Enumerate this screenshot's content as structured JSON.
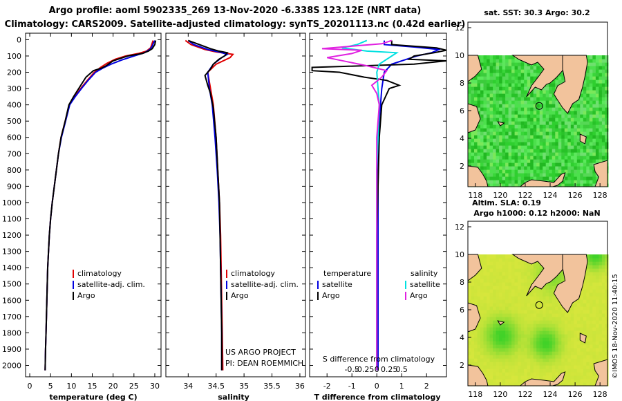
{
  "header": {
    "line1": "Argo profile: aoml 5902335_269 13-Nov-2020 -6.338S 123.12E (NRT data)",
    "line2": "Climatology: CARS2009. Satellite-adjusted climatology: synTS_20201113.nc (0.42d earlier)"
  },
  "colors": {
    "climatology": "#e00000",
    "satellite": "#0000e0",
    "argo": "#000000",
    "sat_salinity": "#00e0e0",
    "argo_salinity": "#e020e0",
    "land": "#f2c39c",
    "ocean_sst": "#2fcf2f",
    "ocean_sla": "#c8e83a"
  },
  "depth_axis": {
    "ticks": [
      0,
      100,
      200,
      300,
      400,
      500,
      600,
      700,
      800,
      900,
      1000,
      1100,
      1200,
      1300,
      1400,
      1500,
      1600,
      1700,
      1800,
      1900,
      2000
    ],
    "range": [
      -40,
      2070
    ]
  },
  "chart_data": [
    {
      "type": "line",
      "name": "temperature",
      "xlabel": "temperature (deg C)",
      "xlim": [
        -1,
        31.5
      ],
      "xticks": [
        0,
        5,
        10,
        15,
        20,
        25,
        30
      ],
      "ylim": [
        -40,
        2070
      ],
      "legend": [
        "climatology",
        "satellite-adj. clim.",
        "Argo"
      ],
      "series": [
        {
          "name": "climatology",
          "points": [
            [
              29.6,
              5
            ],
            [
              29.4,
              20
            ],
            [
              29.0,
              50
            ],
            [
              28.0,
              70
            ],
            [
              26.0,
              85
            ],
            [
              23.0,
              100
            ],
            [
              20.5,
              120
            ],
            [
              18.5,
              145
            ],
            [
              17.0,
              170
            ],
            [
              15.5,
              200
            ],
            [
              13.8,
              250
            ],
            [
              12.2,
              300
            ],
            [
              10.8,
              350
            ],
            [
              9.5,
              400
            ],
            [
              8.5,
              500
            ],
            [
              7.5,
              600
            ],
            [
              6.9,
              700
            ],
            [
              6.4,
              800
            ],
            [
              5.9,
              900
            ],
            [
              5.4,
              1000
            ],
            [
              5.0,
              1100
            ],
            [
              4.7,
              1200
            ],
            [
              4.5,
              1300
            ],
            [
              4.3,
              1400
            ],
            [
              4.2,
              1500
            ],
            [
              4.1,
              1600
            ],
            [
              4.0,
              1700
            ],
            [
              3.9,
              1800
            ],
            [
              3.8,
              1900
            ],
            [
              3.7,
              2030
            ]
          ]
        },
        {
          "name": "satellite-adj. clim.",
          "points": [
            [
              30.0,
              5
            ],
            [
              29.7,
              20
            ],
            [
              29.4,
              40
            ],
            [
              28.8,
              60
            ],
            [
              27.5,
              80
            ],
            [
              25.0,
              100
            ],
            [
              22.0,
              125
            ],
            [
              19.5,
              150
            ],
            [
              17.5,
              175
            ],
            [
              15.8,
              200
            ],
            [
              14.0,
              250
            ],
            [
              12.4,
              300
            ],
            [
              10.9,
              350
            ],
            [
              9.6,
              400
            ],
            [
              8.6,
              500
            ],
            [
              7.6,
              600
            ],
            [
              6.9,
              700
            ],
            [
              6.4,
              800
            ],
            [
              5.9,
              900
            ],
            [
              5.4,
              1000
            ],
            [
              5.0,
              1100
            ],
            [
              4.7,
              1200
            ],
            [
              4.5,
              1300
            ],
            [
              4.3,
              1400
            ],
            [
              4.2,
              1500
            ],
            [
              4.1,
              1600
            ],
            [
              4.0,
              1700
            ],
            [
              3.9,
              1800
            ],
            [
              3.8,
              1900
            ],
            [
              3.7,
              2030
            ]
          ]
        },
        {
          "name": "Argo",
          "points": [
            [
              30.2,
              5
            ],
            [
              30.0,
              30
            ],
            [
              29.4,
              55
            ],
            [
              28.5,
              70
            ],
            [
              27.0,
              85
            ],
            [
              23.5,
              100
            ],
            [
              20.0,
              130
            ],
            [
              18.3,
              160
            ],
            [
              17.2,
              175
            ],
            [
              15.3,
              190
            ],
            [
              13.5,
              230
            ],
            [
              12.0,
              290
            ],
            [
              10.5,
              350
            ],
            [
              9.4,
              400
            ],
            [
              8.5,
              500
            ],
            [
              7.5,
              600
            ],
            [
              6.9,
              700
            ],
            [
              6.4,
              800
            ],
            [
              5.9,
              900
            ],
            [
              5.4,
              1000
            ],
            [
              5.0,
              1100
            ],
            [
              4.7,
              1200
            ],
            [
              4.5,
              1300
            ],
            [
              4.3,
              1400
            ],
            [
              4.2,
              1500
            ],
            [
              4.1,
              1600
            ],
            [
              4.0,
              1700
            ],
            [
              3.9,
              1800
            ],
            [
              3.8,
              1900
            ],
            [
              3.7,
              2030
            ]
          ]
        }
      ]
    },
    {
      "type": "line",
      "name": "salinity",
      "xlabel": "salinity",
      "xlim": [
        33.6,
        36.1
      ],
      "xticks": [
        34,
        34.5,
        35,
        35.5,
        36
      ],
      "ylim": [
        -40,
        2070
      ],
      "legend": [
        "climatology",
        "satellite-adj. clim.",
        "Argo"
      ],
      "credit": [
        "US ARGO PROJECT",
        "PI: DEAN ROEMMICH"
      ],
      "series": [
        {
          "name": "climatology",
          "points": [
            [
              33.95,
              5
            ],
            [
              34.05,
              30
            ],
            [
              34.3,
              60
            ],
            [
              34.5,
              75
            ],
            [
              34.8,
              90
            ],
            [
              34.75,
              110
            ],
            [
              34.5,
              150
            ],
            [
              34.35,
              200
            ],
            [
              34.4,
              300
            ],
            [
              34.45,
              400
            ],
            [
              34.5,
              600
            ],
            [
              34.53,
              800
            ],
            [
              34.56,
              1000
            ],
            [
              34.58,
              1200
            ],
            [
              34.59,
              1400
            ],
            [
              34.6,
              1600
            ],
            [
              34.61,
              1800
            ],
            [
              34.62,
              2030
            ]
          ]
        },
        {
          "name": "satellite-adj. clim.",
          "points": [
            [
              34.0,
              5
            ],
            [
              34.1,
              30
            ],
            [
              34.35,
              60
            ],
            [
              34.55,
              75
            ],
            [
              34.7,
              90
            ],
            [
              34.6,
              110
            ],
            [
              34.45,
              150
            ],
            [
              34.35,
              200
            ],
            [
              34.38,
              300
            ],
            [
              34.43,
              400
            ],
            [
              34.48,
              600
            ],
            [
              34.52,
              800
            ],
            [
              34.55,
              1000
            ],
            [
              34.57,
              1200
            ],
            [
              34.58,
              1400
            ],
            [
              34.59,
              1600
            ],
            [
              34.6,
              1800
            ],
            [
              34.6,
              2030
            ]
          ]
        },
        {
          "name": "Argo",
          "points": [
            [
              34.0,
              5
            ],
            [
              34.2,
              30
            ],
            [
              34.4,
              55
            ],
            [
              34.55,
              70
            ],
            [
              34.7,
              80
            ],
            [
              34.65,
              100
            ],
            [
              34.55,
              120
            ],
            [
              34.45,
              150
            ],
            [
              34.4,
              180
            ],
            [
              34.3,
              220
            ],
            [
              34.35,
              280
            ],
            [
              34.4,
              330
            ],
            [
              34.45,
              420
            ],
            [
              34.5,
              600
            ],
            [
              34.53,
              800
            ],
            [
              34.56,
              1000
            ],
            [
              34.57,
              1200
            ],
            [
              34.58,
              1400
            ],
            [
              34.59,
              1600
            ],
            [
              34.6,
              1800
            ],
            [
              34.6,
              2030
            ]
          ]
        }
      ]
    },
    {
      "type": "line",
      "name": "difference",
      "xlabel": "T difference from climatology",
      "xlim": [
        -2.7,
        2.8
      ],
      "xticks": [
        -2,
        -1,
        0,
        1,
        2
      ],
      "top_label": "S difference from climatology",
      "sxticks": [
        "-0.5",
        "-0.25",
        "0",
        "0.25",
        "0.5"
      ],
      "sxtick_values": [
        -0.5,
        -0.25,
        0,
        0.25,
        0.5
      ],
      "legend_left_title": "temperature",
      "legend_right_title": "salinity",
      "legend_left": [
        "satellite",
        "Argo"
      ],
      "legend_right": [
        "satellite",
        "Argo"
      ],
      "series": [
        {
          "name": "T satellite",
          "points": [
            [
              0.3,
              5
            ],
            [
              0.3,
              30
            ],
            [
              1.5,
              45
            ],
            [
              2.5,
              60
            ],
            [
              2.2,
              80
            ],
            [
              1.6,
              100
            ],
            [
              1.2,
              120
            ],
            [
              0.6,
              150
            ],
            [
              0.3,
              200
            ],
            [
              0.2,
              300
            ],
            [
              0.1,
              500
            ],
            [
              0.05,
              800
            ],
            [
              0.05,
              1200
            ],
            [
              0.05,
              1600
            ],
            [
              0.05,
              2030
            ]
          ]
        },
        {
          "name": "T Argo",
          "points": [
            [
              0.6,
              5
            ],
            [
              0.6,
              30
            ],
            [
              2.4,
              50
            ],
            [
              2.8,
              65
            ],
            [
              2.3,
              80
            ],
            [
              1.5,
              100
            ],
            [
              1.3,
              120
            ],
            [
              2.8,
              130
            ],
            [
              1.5,
              150
            ],
            [
              -2.6,
              170
            ],
            [
              -2.6,
              190
            ],
            [
              -1.5,
              200
            ],
            [
              -0.5,
              230
            ],
            [
              0.4,
              250
            ],
            [
              0.9,
              280
            ],
            [
              0.5,
              300
            ],
            [
              0.2,
              400
            ],
            [
              0.1,
              600
            ],
            [
              0.05,
              900
            ],
            [
              0.0,
              1200
            ],
            [
              0.0,
              1600
            ],
            [
              0.0,
              2030
            ]
          ]
        },
        {
          "name": "S satellite",
          "points": [
            [
              -0.2,
              5
            ],
            [
              -0.4,
              30
            ],
            [
              -0.7,
              50
            ],
            [
              -0.2,
              70
            ],
            [
              0.4,
              80
            ],
            [
              0.3,
              100
            ],
            [
              0.05,
              150
            ],
            [
              0.0,
              200
            ],
            [
              0.05,
              400
            ],
            [
              0.0,
              800
            ],
            [
              0.0,
              1200
            ],
            [
              0.0,
              1600
            ],
            [
              0.0,
              2030
            ]
          ]
        },
        {
          "name": "S Argo",
          "points": [
            [
              0.3,
              5
            ],
            [
              0.1,
              25
            ],
            [
              -0.7,
              45
            ],
            [
              -1.1,
              55
            ],
            [
              -0.3,
              65
            ],
            [
              -0.5,
              85
            ],
            [
              -1.0,
              110
            ],
            [
              -0.6,
              135
            ],
            [
              -0.2,
              160
            ],
            [
              0.2,
              190
            ],
            [
              0.1,
              230
            ],
            [
              -0.1,
              280
            ],
            [
              0.0,
              330
            ],
            [
              0.05,
              400
            ],
            [
              0.0,
              600
            ],
            [
              0.0,
              900
            ],
            [
              0.0,
              1200
            ],
            [
              0.0,
              1600
            ],
            [
              0.0,
              2030
            ]
          ]
        }
      ]
    }
  ],
  "maps": [
    {
      "title": "sat. SST: 30.3 Argo: 30.2",
      "xticks": [
        118,
        120,
        122,
        124,
        126,
        128
      ],
      "yticks": [
        2,
        4,
        6,
        8,
        10,
        12
      ],
      "xlim": [
        117.4,
        128.6
      ],
      "ylim": [
        0.5,
        12.4
      ],
      "data_top": 10,
      "float_location": [
        123.12,
        6.34
      ]
    },
    {
      "title_line1": "Altim. SLA: 0.19",
      "title_line2": "Argo h1000: 0.12 h2000: NaN",
      "xticks": [
        118,
        120,
        122,
        124,
        126,
        128
      ],
      "yticks": [
        2,
        4,
        6,
        8,
        10,
        12
      ],
      "xlim": [
        117.4,
        128.6
      ],
      "ylim": [
        0.5,
        12.4
      ],
      "data_top": 10,
      "float_location": [
        123.12,
        6.34
      ]
    }
  ],
  "side_label": "©IMOS 18-Nov-2020 11:40:15"
}
